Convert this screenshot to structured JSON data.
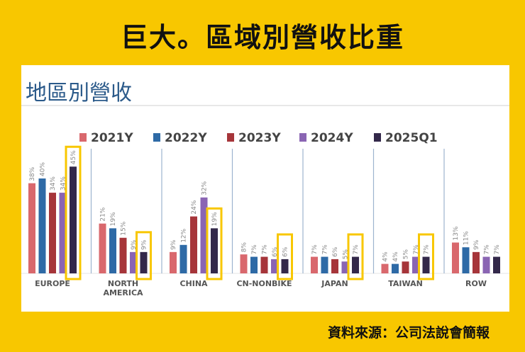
{
  "headline": "巨大。區域別營收比重",
  "panel_title": "地區別營收",
  "source": "資料來源：公司法說會簡報",
  "chart_data": {
    "type": "bar",
    "title": "地區別營收",
    "categories": [
      "EUROPE",
      "NORTH\nAMERICA",
      "CHINA",
      "CN-NONBIKE",
      "JAPAN",
      "TAIWAN",
      "ROW"
    ],
    "series": [
      {
        "name": "2021Y",
        "color": "#d9686d",
        "values": [
          38,
          21,
          9,
          8,
          7,
          4,
          13
        ]
      },
      {
        "name": "2022Y",
        "color": "#2e6aa6",
        "values": [
          40,
          19,
          12,
          7,
          7,
          4,
          11
        ]
      },
      {
        "name": "2023Y",
        "color": "#a6353a",
        "values": [
          34,
          15,
          24,
          7,
          6,
          5,
          9
        ]
      },
      {
        "name": "2024Y",
        "color": "#8a65b3",
        "values": [
          34,
          9,
          32,
          6,
          5,
          7,
          7
        ]
      },
      {
        "name": "2025Q1",
        "color": "#33284a",
        "values": [
          45,
          9,
          19,
          6,
          7,
          7,
          7
        ]
      }
    ],
    "value_suffix": "%",
    "highlighted_series": "2025Q1",
    "highlighted_categories": [
      "EUROPE",
      "NORTH\nAMERICA",
      "CHINA",
      "CN-NONBIKE",
      "JAPAN",
      "TAIWAN"
    ],
    "highlight_color": "#f8c700",
    "legend_position": "top",
    "ylim": [
      0,
      48
    ],
    "grid": false
  }
}
